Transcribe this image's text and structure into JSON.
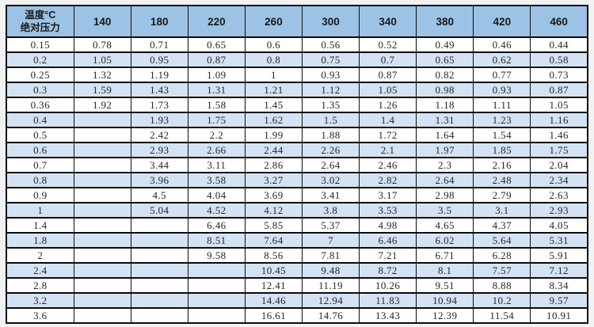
{
  "table": {
    "corner": {
      "line1": "温度°C",
      "line2": "绝对压力"
    },
    "temperature_columns": [
      "140",
      "180",
      "220",
      "260",
      "300",
      "340",
      "380",
      "420",
      "460"
    ],
    "rows": [
      {
        "pressure": "0.15",
        "values": [
          "0.78",
          "0.71",
          "0.65",
          "0.6",
          "0.56",
          "0.52",
          "0.49",
          "0.46",
          "0.44"
        ]
      },
      {
        "pressure": "0.2",
        "values": [
          "1.05",
          "0.95",
          "0.87",
          "0.8",
          "0.75",
          "0.7",
          "0.65",
          "0.62",
          "0.58"
        ]
      },
      {
        "pressure": "0.25",
        "values": [
          "1.32",
          "1.19",
          "1.09",
          "1",
          "0.93",
          "0.87",
          "0.82",
          "0.77",
          "0.73"
        ]
      },
      {
        "pressure": "0.3",
        "values": [
          "1.59",
          "1.43",
          "1.31",
          "1.21",
          "1.12",
          "1.05",
          "0.98",
          "0.93",
          "0.87"
        ]
      },
      {
        "pressure": "0.36",
        "values": [
          "1.92",
          "1.73",
          "1.58",
          "1.45",
          "1.35",
          "1.26",
          "1.18",
          "1.11",
          "1.05"
        ]
      },
      {
        "pressure": "0.4",
        "values": [
          "",
          "1.93",
          "1.75",
          "1.62",
          "1.5",
          "1.4",
          "1.31",
          "1.23",
          "1.16"
        ]
      },
      {
        "pressure": "0.5",
        "values": [
          "",
          "2.42",
          "2.2",
          "1.99",
          "1.88",
          "1.72",
          "1.64",
          "1.54",
          "1.46"
        ]
      },
      {
        "pressure": "0.6",
        "values": [
          "",
          "2.93",
          "2.66",
          "2.44",
          "2.26",
          "2.1",
          "1.97",
          "1.85",
          "1.75"
        ]
      },
      {
        "pressure": "0.7",
        "values": [
          "",
          "3.44",
          "3.11",
          "2.86",
          "2.64",
          "2.46",
          "2.3",
          "2.16",
          "2.04"
        ]
      },
      {
        "pressure": "0.8",
        "values": [
          "",
          "3.96",
          "3.58",
          "3.27",
          "3.02",
          "2.82",
          "2.64",
          "2.48",
          "2.34"
        ]
      },
      {
        "pressure": "0.9",
        "values": [
          "",
          "4.5",
          "4.04",
          "3.69",
          "3.41",
          "3.17",
          "2.98",
          "2.79",
          "2.63"
        ]
      },
      {
        "pressure": "1",
        "values": [
          "",
          "5.04",
          "4.52",
          "4.12",
          "3.8",
          "3.53",
          "3.5",
          "3.1",
          "2.93"
        ]
      },
      {
        "pressure": "1.4",
        "values": [
          "",
          "",
          "6.46",
          "5.85",
          "5.37",
          "4.98",
          "4.65",
          "4.37",
          "4.05"
        ]
      },
      {
        "pressure": "1.8",
        "values": [
          "",
          "",
          "8.51",
          "7.64",
          "7",
          "6.46",
          "6.02",
          "5.64",
          "5.31"
        ]
      },
      {
        "pressure": "2",
        "values": [
          "",
          "",
          "9.58",
          "8.56",
          "7.81",
          "7.21",
          "6.71",
          "6.28",
          "5.91"
        ]
      },
      {
        "pressure": "2.4",
        "values": [
          "",
          "",
          "",
          "10.45",
          "9.48",
          "8.72",
          "8.1",
          "7.57",
          "7.12"
        ]
      },
      {
        "pressure": "2.8",
        "values": [
          "",
          "",
          "",
          "12.41",
          "11.19",
          "10.26",
          "9.51",
          "8.88",
          "8.34"
        ]
      },
      {
        "pressure": "3.2",
        "values": [
          "",
          "",
          "",
          "14.46",
          "12.94",
          "11.83",
          "10.94",
          "10.2",
          "9.57"
        ]
      },
      {
        "pressure": "3.6",
        "values": [
          "",
          "",
          "",
          "16.61",
          "14.76",
          "13.43",
          "12.39",
          "11.54",
          "10.91"
        ]
      }
    ]
  },
  "colors": {
    "header_bg": "#9cc3e5",
    "stripe_bg": "#d3e3f4",
    "row_bg": "#ffffff",
    "border": "#0b0b0b",
    "page_bg": "#f1f2f4",
    "text": "#262626"
  }
}
